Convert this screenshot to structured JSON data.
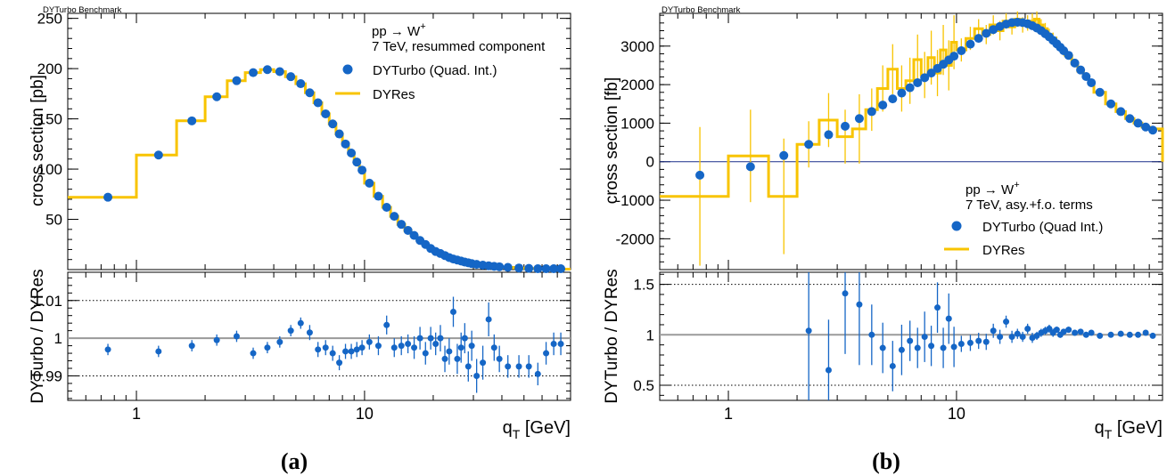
{
  "figure": {
    "panel_labels": [
      "(a)",
      "(b)"
    ],
    "bench_label": "DYTurbo Benchmark"
  },
  "chart_data": [
    {
      "type": "line",
      "panel": "(a)",
      "bench_label": "DYTurbo Benchmark",
      "x_scale": "log",
      "xlim": [
        0.5,
        80
      ],
      "xlabel_main": "q",
      "xlabel_sub": "T",
      "xlabel_unit": " [GeV]",
      "x_tick_labels": [
        {
          "value": 1,
          "label": "1"
        },
        {
          "value": 10,
          "label": "10"
        }
      ],
      "top": {
        "ylabel": "cross section [pb]",
        "ylim": [
          0,
          255
        ],
        "y_ticks": [
          50,
          100,
          150,
          200,
          250
        ],
        "annotation_lines": [
          {
            "main": "pp → W",
            "sup": "+"
          },
          {
            "main": "7 TeV, resummed component",
            "sup": ""
          }
        ],
        "legend": [
          "DYTurbo (Quad. Int.)",
          "DYRes"
        ],
        "grid": false,
        "series": [
          {
            "name": "DYTurbo (Quad. Int.)",
            "style": "markers",
            "x": [
              0.75,
              1.25,
              1.75,
              2.25,
              2.75,
              3.25,
              3.75,
              4.25,
              4.75,
              5.25,
              5.75,
              6.25,
              6.75,
              7.25,
              7.75,
              8.25,
              8.75,
              9.25,
              9.75,
              10.5,
              11.5,
              12.5,
              13.5,
              14.5,
              15.5,
              16.5,
              17.5,
              18.5,
              19.5,
              20.5,
              21.5,
              22.5,
              23.5,
              24.5,
              25.5,
              26.5,
              27.5,
              28.5,
              29.5,
              31,
              33,
              35,
              37,
              39,
              42.5,
              47.5,
              52.5,
              57.5,
              62.5,
              67.5,
              72.5
            ],
            "y": [
              72,
              114,
              148,
              172,
              188,
              196,
              199,
              197,
              192,
              185,
              176,
              166,
              155,
              145,
              135,
              125,
              116,
              107,
              99,
              86,
              73,
              62,
              53,
              45,
              39,
              34,
              29,
              25,
              21,
              18,
              16,
              14,
              12,
              10.5,
              9.5,
              8.5,
              7.5,
              6.8,
              6,
              5.2,
              4.4,
              3.8,
              3.2,
              2.8,
              2.2,
              1.6,
              1.2,
              0.9,
              0.7,
              0.5,
              0.4
            ]
          },
          {
            "name": "DYRes",
            "style": "step",
            "edges": [
              0.5,
              1,
              1.5,
              2,
              2.5,
              3,
              3.5,
              4,
              4.5,
              5,
              5.5,
              6,
              6.5,
              7,
              7.5,
              8,
              8.5,
              9,
              9.5,
              10,
              11,
              12,
              13,
              14,
              15,
              16,
              17,
              18,
              19,
              20,
              21,
              22,
              23,
              24,
              25,
              26,
              27,
              28,
              29,
              30,
              32,
              34,
              36,
              38,
              40,
              45,
              50,
              55,
              60,
              65,
              70,
              80
            ],
            "values": [
              72,
              114,
              148,
              172,
              188,
              196,
              199,
              197,
              192,
              185,
              176,
              166,
              155,
              145,
              135,
              125,
              116,
              107,
              99,
              86,
              73,
              62,
              53,
              45,
              39,
              34,
              29,
              25,
              21,
              18,
              16,
              14,
              12,
              10.5,
              9.5,
              8.5,
              7.5,
              6.8,
              6,
              5.2,
              4.4,
              3.8,
              3.2,
              2.8,
              2.2,
              1.6,
              1.2,
              0.9,
              0.7,
              0.5,
              0.4
            ]
          }
        ]
      },
      "ratio": {
        "ylabel": "DYTurbo / DYRes",
        "ylim": [
          0.9835,
          1.0175
        ],
        "y_ticks": [
          {
            "value": 0.99,
            "label": "0.99"
          },
          {
            "value": 1,
            "label": "1"
          },
          {
            "value": 1.01,
            "label": "1.01"
          }
        ],
        "dotted_lines": [
          0.99,
          1.01
        ],
        "reference_line": 1,
        "points": {
          "x": [
            0.75,
            1.25,
            1.75,
            2.25,
            2.75,
            3.25,
            3.75,
            4.25,
            4.75,
            5.25,
            5.75,
            6.25,
            6.75,
            7.25,
            7.75,
            8.25,
            8.75,
            9.25,
            9.75,
            10.5,
            11.5,
            12.5,
            13.5,
            14.5,
            15.5,
            16.5,
            17.5,
            18.5,
            19.5,
            20.5,
            21.5,
            22.5,
            23.5,
            24.5,
            25.5,
            26.5,
            27.5,
            28.5,
            29.5,
            31,
            33,
            35,
            37,
            39,
            42.5,
            47.5,
            52.5,
            57.5,
            62.5,
            67.5,
            72.5
          ],
          "y": [
            0.997,
            0.9965,
            0.998,
            0.9995,
            1.0005,
            0.996,
            0.9975,
            0.999,
            1.002,
            1.004,
            1.0015,
            0.997,
            0.9975,
            0.996,
            0.9935,
            0.9965,
            0.9965,
            0.997,
            0.9975,
            0.999,
            0.998,
            1.0035,
            0.9975,
            0.998,
            0.9985,
            0.9975,
            1.0,
            0.996,
            1.0,
            0.9985,
            1.0,
            0.9945,
            0.9965,
            1.007,
            0.9945,
            0.9975,
            1.0,
            0.9925,
            0.998,
            0.99,
            0.9935,
            1.005,
            0.9975,
            0.9945,
            0.9925,
            0.9925,
            0.9925,
            0.9905,
            0.996,
            0.9985,
            0.9985
          ],
          "yerr": [
            0.0015,
            0.0015,
            0.0015,
            0.0015,
            0.0015,
            0.0015,
            0.0015,
            0.0015,
            0.0015,
            0.0015,
            0.002,
            0.002,
            0.002,
            0.002,
            0.002,
            0.002,
            0.002,
            0.002,
            0.002,
            0.002,
            0.0025,
            0.0025,
            0.0025,
            0.0025,
            0.0025,
            0.003,
            0.003,
            0.003,
            0.003,
            0.003,
            0.0035,
            0.0035,
            0.0035,
            0.004,
            0.004,
            0.004,
            0.004,
            0.004,
            0.004,
            0.0045,
            0.0045,
            0.0045,
            0.0035,
            0.0035,
            0.003,
            0.003,
            0.003,
            0.003,
            0.003,
            0.003,
            0.003
          ]
        }
      }
    },
    {
      "type": "line",
      "panel": "(b)",
      "bench_label": "DYTurbo Benchmark",
      "x_scale": "log",
      "xlim": [
        0.5,
        80
      ],
      "xlabel_main": "q",
      "xlabel_sub": "T",
      "xlabel_unit": " [GeV]",
      "x_tick_labels": [
        {
          "value": 1,
          "label": "1"
        },
        {
          "value": 10,
          "label": "10"
        }
      ],
      "top": {
        "ylabel": "cross section [fb]",
        "ylim": [
          -2800,
          3850
        ],
        "y_ticks": [
          -2000,
          -1000,
          0,
          1000,
          2000,
          3000
        ],
        "zero_line": 0,
        "annotation_lines": [
          {
            "main": "pp → W",
            "sup": "+"
          },
          {
            "main": "7 TeV, asy.+f.o. terms",
            "sup": ""
          }
        ],
        "legend": [
          "DYTurbo (Quad Int.)",
          "DYRes"
        ],
        "grid": false,
        "series": [
          {
            "name": "DYTurbo (Quad Int.)",
            "style": "markers",
            "x": [
              0.75,
              1.25,
              1.75,
              2.25,
              2.75,
              3.25,
              3.75,
              4.25,
              4.75,
              5.25,
              5.75,
              6.25,
              6.75,
              7.25,
              7.75,
              8.25,
              8.75,
              9.25,
              9.75,
              10.5,
              11.5,
              12.5,
              13.5,
              14.5,
              15.5,
              16.5,
              17.5,
              18.5,
              19.5,
              20.5,
              21.5,
              22.5,
              23.5,
              24.5,
              25.5,
              26.5,
              27.5,
              28.5,
              29.5,
              31,
              33,
              35,
              37,
              39,
              42.5,
              47.5,
              52.5,
              57.5,
              62.5,
              67.5,
              72.5
            ],
            "y": [
              -350,
              -130,
              160,
              450,
              700,
              920,
              1120,
              1300,
              1470,
              1630,
              1780,
              1920,
              2050,
              2180,
              2300,
              2420,
              2530,
              2640,
              2740,
              2880,
              3050,
              3200,
              3330,
              3430,
              3510,
              3570,
              3610,
              3620,
              3610,
              3580,
              3530,
              3470,
              3400,
              3320,
              3240,
              3150,
              3060,
              2970,
              2880,
              2760,
              2560,
              2380,
              2210,
              2050,
              1800,
              1500,
              1300,
              1120,
              1000,
              900,
              820
            ]
          },
          {
            "name": "DYRes",
            "style": "step",
            "edges": [
              0.5,
              1,
              1.5,
              2,
              2.5,
              3,
              3.5,
              4,
              4.5,
              5,
              5.5,
              6,
              6.5,
              7,
              7.5,
              8,
              8.5,
              9,
              9.5,
              10,
              11,
              12,
              13,
              14,
              15,
              16,
              17,
              18,
              19,
              20,
              21,
              22,
              23,
              24,
              25,
              26,
              27,
              28,
              29,
              30,
              32,
              34,
              36,
              38,
              40,
              45,
              50,
              55,
              60,
              65,
              70,
              80
            ],
            "values": [
              -900,
              150,
              -900,
              450,
              1080,
              650,
              850,
              1350,
              1900,
              2400,
              1900,
              2100,
              2650,
              2250,
              2700,
              2300,
              2900,
              2500,
              3100,
              2900,
              3200,
              3450,
              3300,
              3550,
              3400,
              3650,
              3500,
              3700,
              3550,
              3600,
              3650,
              3700,
              3550,
              3450,
              3300,
              3200,
              3100,
              2950,
              2850,
              2750,
              2550,
              2350,
              2200,
              2050,
              1800,
              1500,
              1300,
              1120,
              1000,
              900,
              850
            ],
            "errors": [
              1800,
              1200,
              1500,
              600,
              700,
              700,
              900,
              550,
              600,
              650,
              600,
              600,
              650,
              600,
              700,
              600,
              650,
              650,
              700,
              300,
              300,
              250,
              250,
              250,
              250,
              200,
              200,
              200,
              200,
              200,
              200,
              200,
              150,
              150,
              150,
              150,
              150,
              100,
              100,
              100,
              80,
              80,
              80,
              60,
              60,
              50,
              40,
              40,
              40,
              40,
              40
            ]
          }
        ]
      },
      "ratio": {
        "ylabel": "DYTurbo / DYRes",
        "ylim": [
          0.35,
          1.62
        ],
        "y_ticks": [
          {
            "value": 0.5,
            "label": "0.5"
          },
          {
            "value": 1,
            "label": "1"
          },
          {
            "value": 1.5,
            "label": "1.5"
          }
        ],
        "dotted_lines": [
          0.5,
          1.5
        ],
        "reference_line": 1,
        "points": {
          "x": [
            2.25,
            2.75,
            3.25,
            3.75,
            4.25,
            4.75,
            5.25,
            5.75,
            6.25,
            6.75,
            7.25,
            7.75,
            8.25,
            8.75,
            9.25,
            9.75,
            10.5,
            11.5,
            12.5,
            13.5,
            14.5,
            15.5,
            16.5,
            17.5,
            18.5,
            19.5,
            20.5,
            21.5,
            22.5,
            23.5,
            24.5,
            25.5,
            26.5,
            27.5,
            28.5,
            29.5,
            31,
            33,
            35,
            37,
            39,
            42.5,
            47.5,
            52.5,
            57.5,
            62.5,
            67.5,
            72.5
          ],
          "y": [
            1.04,
            0.65,
            1.41,
            1.3,
            1.0,
            0.87,
            0.69,
            0.85,
            0.94,
            0.87,
            0.98,
            0.89,
            1.27,
            0.87,
            1.16,
            0.88,
            0.91,
            0.92,
            0.94,
            0.93,
            1.04,
            0.98,
            1.13,
            0.98,
            1.01,
            0.98,
            1.06,
            0.97,
            0.99,
            1.02,
            1.04,
            1.06,
            1.02,
            1.05,
            1.0,
            1.03,
            1.05,
            1.02,
            1.03,
            1.0,
            1.02,
            0.99,
            1.0,
            1.01,
            1.0,
            1.0,
            1.02,
            0.99
          ],
          "yerr": [
            0.9,
            0.5,
            0.6,
            0.6,
            0.3,
            0.25,
            0.25,
            0.25,
            0.2,
            0.2,
            0.25,
            0.2,
            0.25,
            0.2,
            0.25,
            0.2,
            0.08,
            0.08,
            0.08,
            0.08,
            0.07,
            0.07,
            0.06,
            0.06,
            0.05,
            0.05,
            0.05,
            0.05,
            0.04,
            0.04,
            0.04,
            0.04,
            0.04,
            0.03,
            0.03,
            0.03,
            0.03,
            0.03,
            0.02,
            0.02,
            0.02,
            0.02,
            0.02,
            0.02,
            0.02,
            0.02,
            0.02,
            0.02
          ]
        }
      }
    }
  ]
}
